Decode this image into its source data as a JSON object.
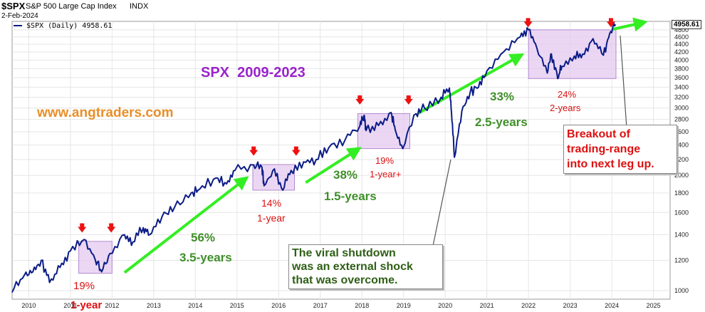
{
  "header": {
    "symbol": "$SPX",
    "name": "S&P 500 Large Cap Index",
    "exchange": "INDX",
    "date": "2-Feb-2024",
    "legend_label": "$SPX (Daily) 4958.61"
  },
  "price_label": "4958.61",
  "overlay": {
    "title": "SPX  2009-2023",
    "website": "www.angtraders.com"
  },
  "annotations": {
    "a1_pct": "19%",
    "a1_dur": "1-year",
    "a2_pct": "56%",
    "a2_dur": "3.5-years",
    "a3_pct": "14%",
    "a3_dur": "1-year",
    "a4_pct": "38%",
    "a4_dur": "1.5-years",
    "a5_pct": "19%",
    "a5_dur": "1-year+",
    "a6_pct": "33%",
    "a6_dur": "2.5-years",
    "a7_pct": "24%",
    "a7_dur": "2-years"
  },
  "callouts": {
    "shutdown": [
      "The viral shutdown",
      "was an external shock",
      "that was overcome."
    ],
    "breakout": [
      "Breakout of",
      "trading-range",
      "into next leg up."
    ]
  },
  "colors": {
    "line": "#0b1c86",
    "arrow": "#33ee22",
    "box_fill": "#e4caf0",
    "box_stroke": "#b48ad0",
    "marker": "#ee1111",
    "title": "#9922cc",
    "website": "#e88f2a",
    "green_text": "#3f8f2a",
    "red_text": "#dd1111",
    "shutdown_text": "#2f5f16"
  },
  "chart_data": {
    "type": "line",
    "series": [
      {
        "name": "$SPX (Daily)",
        "x": [
          2009.6,
          2009.9,
          2010.1,
          2010.3,
          2010.5,
          2010.75,
          2011.0,
          2011.33,
          2011.6,
          2011.75,
          2011.95,
          2012.3,
          2012.5,
          2012.75,
          2012.9,
          2013.2,
          2013.5,
          2013.9,
          2014.1,
          2014.5,
          2014.75,
          2014.95,
          2015.4,
          2015.6,
          2015.65,
          2015.9,
          2016.1,
          2016.3,
          2016.6,
          2016.9,
          2017.2,
          2017.6,
          2017.95,
          2018.05,
          2018.1,
          2018.4,
          2018.7,
          2018.8,
          2018.98,
          2019.3,
          2019.5,
          2019.9,
          2020.1,
          2020.15,
          2020.22,
          2020.4,
          2020.6,
          2020.8,
          2021.0,
          2021.4,
          2021.8,
          2022.0,
          2022.2,
          2022.45,
          2022.55,
          2022.7,
          2022.8,
          2023.1,
          2023.3,
          2023.55,
          2023.8,
          2023.95,
          2024.09
        ],
        "y": [
          990,
          1100,
          1120,
          1200,
          1050,
          1150,
          1270,
          1360,
          1200,
          1120,
          1250,
          1400,
          1340,
          1460,
          1400,
          1560,
          1650,
          1800,
          1840,
          1970,
          1900,
          2060,
          2130,
          2100,
          1880,
          2080,
          1830,
          2060,
          2170,
          2200,
          2360,
          2480,
          2690,
          2870,
          2620,
          2700,
          2920,
          2630,
          2350,
          2900,
          3000,
          3200,
          3380,
          2920,
          2230,
          2950,
          3300,
          3400,
          3750,
          4200,
          4600,
          4800,
          4300,
          3700,
          4150,
          3580,
          3850,
          4100,
          4150,
          4550,
          4120,
          4700,
          4958.61
        ]
      }
    ],
    "xlim": [
      2009.6,
      2025.4
    ],
    "ylim": [
      950,
      5050
    ],
    "yscale": "log",
    "x_ticks": [
      2010,
      2011,
      2012,
      2013,
      2014,
      2015,
      2016,
      2017,
      2018,
      2019,
      2020,
      2021,
      2022,
      2023,
      2024,
      2025
    ],
    "y_ticks": [
      1000,
      1200,
      1400,
      1600,
      1800,
      2000,
      2200,
      2400,
      2600,
      2800,
      3000,
      3200,
      3400,
      3600,
      3800,
      4000,
      4200,
      4400,
      4600,
      4800
    ],
    "grid": true,
    "boxes": [
      {
        "x0": 2011.2,
        "x1": 2012.0,
        "y0": 1110,
        "y1": 1345
      },
      {
        "x0": 2015.38,
        "x1": 2016.38,
        "y0": 1830,
        "y1": 2135
      },
      {
        "x0": 2017.9,
        "x1": 2019.15,
        "y0": 2350,
        "y1": 2900
      },
      {
        "x0": 2022.0,
        "x1": 2024.1,
        "y0": 3580,
        "y1": 4800
      }
    ],
    "trend_arrows": [
      {
        "x0": 2012.3,
        "y0": 1115,
        "x1": 2015.15,
        "y1": 1940
      },
      {
        "x0": 2016.65,
        "y0": 1915,
        "x1": 2017.85,
        "y1": 2320
      },
      {
        "x0": 2019.35,
        "y0": 2905,
        "x1": 2021.75,
        "y1": 4080
      },
      {
        "x0": 2024.0,
        "y0": 4810,
        "x1": 2024.7,
        "y1": 5000
      }
    ],
    "markers": [
      {
        "x": 2011.28,
        "y": 1455
      },
      {
        "x": 2011.98,
        "y": 1455
      },
      {
        "x": 2015.4,
        "y": 2310
      },
      {
        "x": 2016.42,
        "y": 2310
      },
      {
        "x": 2017.95,
        "y": 3140
      },
      {
        "x": 2019.12,
        "y": 3140
      },
      {
        "x": 2021.99,
        "y": 5000
      },
      {
        "x": 2023.98,
        "y": 5000
      }
    ]
  }
}
